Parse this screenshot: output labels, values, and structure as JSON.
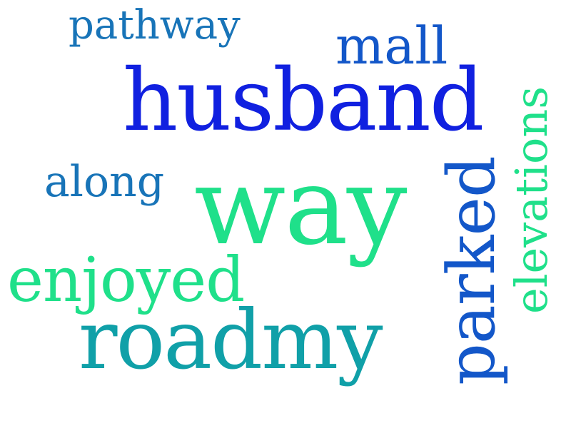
{
  "words": [
    {
      "text": "pathway",
      "color": "#1874b8",
      "orientation": "horizontal"
    },
    {
      "text": "mall",
      "color": "#1357c9",
      "orientation": "horizontal"
    },
    {
      "text": "husband",
      "color": "#1020e0",
      "orientation": "horizontal"
    },
    {
      "text": "along",
      "color": "#1874b8",
      "orientation": "horizontal"
    },
    {
      "text": "way",
      "color": "#1fe08a",
      "orientation": "horizontal"
    },
    {
      "text": "enjoyed",
      "color": "#1fe08a",
      "orientation": "horizontal"
    },
    {
      "text": "roadmy",
      "color": "#10a0a8",
      "orientation": "horizontal"
    },
    {
      "text": "parked",
      "color": "#1357c9",
      "orientation": "vertical"
    },
    {
      "text": "elevations",
      "color": "#1fe08a",
      "orientation": "vertical"
    }
  ]
}
